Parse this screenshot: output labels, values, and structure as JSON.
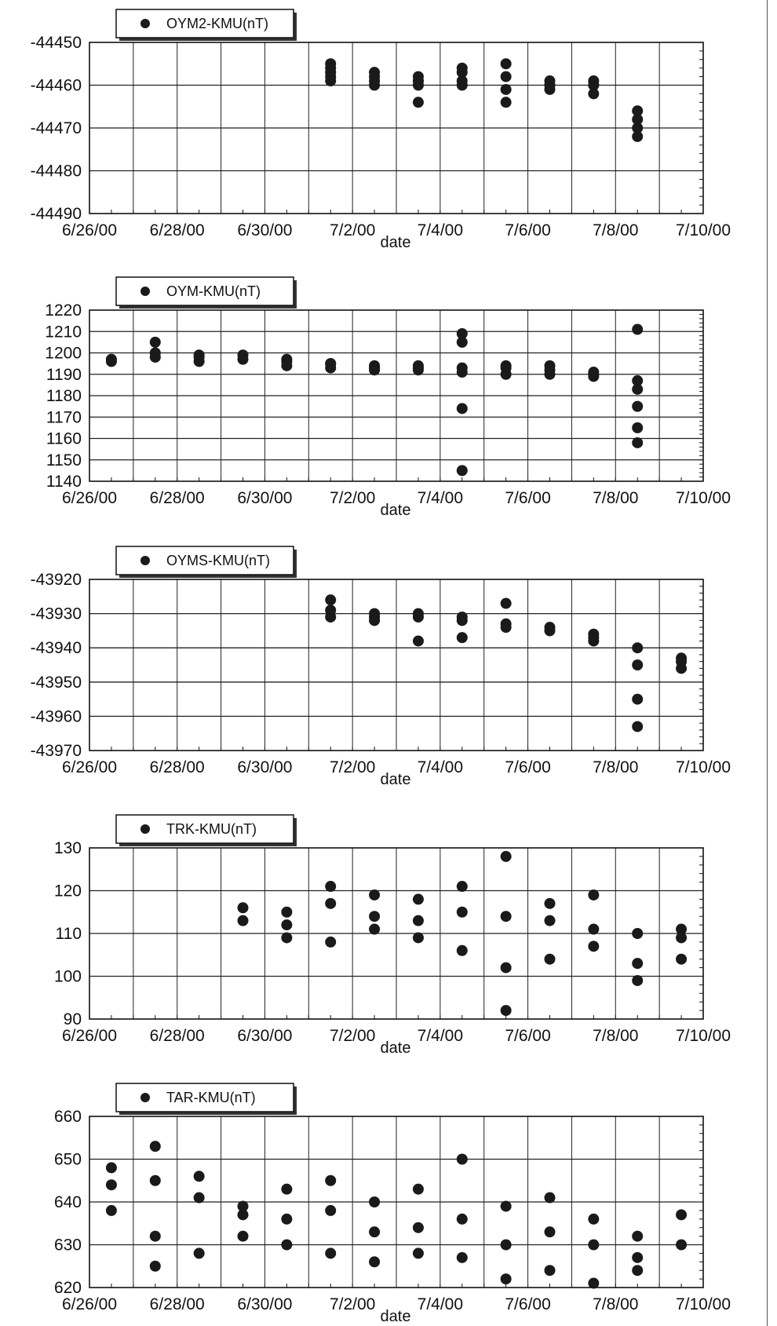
{
  "x_tick_labels": [
    "6/26/00",
    "6/28/00",
    "6/30/00",
    "7/2/00",
    "7/4/00",
    "7/6/00",
    "7/8/00",
    "7/10/00"
  ],
  "chart_data": [
    {
      "type": "scatter",
      "legend": "OYM2-KMU(nT)",
      "xlabel": "date",
      "ylim": [
        -44490,
        -44450
      ],
      "yticks": [
        -44450,
        -44460,
        -44470,
        -44480,
        -44490
      ],
      "xlim": [
        "2000-06-26",
        "2000-07-10"
      ],
      "grid": true,
      "legend_position": "top-left",
      "x": [
        "2000-07-01",
        "2000-07-01",
        "2000-07-01",
        "2000-07-01",
        "2000-07-01",
        "2000-07-02",
        "2000-07-02",
        "2000-07-02",
        "2000-07-02",
        "2000-07-03",
        "2000-07-03",
        "2000-07-03",
        "2000-07-03",
        "2000-07-03",
        "2000-07-04",
        "2000-07-04",
        "2000-07-04",
        "2000-07-04",
        "2000-07-05",
        "2000-07-05",
        "2000-07-05",
        "2000-07-05",
        "2000-07-06",
        "2000-07-06",
        "2000-07-06",
        "2000-07-06",
        "2000-07-07",
        "2000-07-07",
        "2000-07-07",
        "2000-07-07",
        "2000-07-08",
        "2000-07-08",
        "2000-07-08",
        "2000-07-08"
      ],
      "y": [
        -44455,
        -44457,
        -44456,
        -44459,
        -44458,
        -44457,
        -44459,
        -44458,
        -44460,
        -44459,
        -44460,
        -44458,
        -44459,
        -44464,
        -44457,
        -44459,
        -44456,
        -44460,
        -44461,
        -44458,
        -44455,
        -44464,
        -44460,
        -44459,
        -44461,
        -44460,
        -44459,
        -44462,
        -44460,
        -44460,
        -44468,
        -44466,
        -44470,
        -44472
      ]
    },
    {
      "type": "scatter",
      "legend": "OYM-KMU(nT)",
      "xlabel": "date",
      "ylim": [
        1140,
        1220
      ],
      "yticks": [
        1220,
        1210,
        1200,
        1190,
        1180,
        1170,
        1160,
        1150,
        1140
      ],
      "xlim": [
        "2000-06-26",
        "2000-07-10"
      ],
      "grid": true,
      "legend_position": "top-left",
      "x": [
        "2000-06-26",
        "2000-06-26",
        "2000-06-27",
        "2000-06-27",
        "2000-06-27",
        "2000-06-28",
        "2000-06-28",
        "2000-06-28",
        "2000-06-29",
        "2000-06-29",
        "2000-06-30",
        "2000-06-30",
        "2000-06-30",
        "2000-07-01",
        "2000-07-01",
        "2000-07-01",
        "2000-07-02",
        "2000-07-02",
        "2000-07-02",
        "2000-07-03",
        "2000-07-03",
        "2000-07-03",
        "2000-07-04",
        "2000-07-04",
        "2000-07-04",
        "2000-07-04",
        "2000-07-04",
        "2000-07-04",
        "2000-07-05",
        "2000-07-05",
        "2000-07-05",
        "2000-07-06",
        "2000-07-06",
        "2000-07-06",
        "2000-07-07",
        "2000-07-07",
        "2000-07-07",
        "2000-07-08",
        "2000-07-08",
        "2000-07-08",
        "2000-07-08",
        "2000-07-08",
        "2000-07-08"
      ],
      "y": [
        1197,
        1196,
        1205,
        1200,
        1198,
        1199,
        1196,
        1198,
        1197,
        1199,
        1197,
        1196,
        1194,
        1195,
        1195,
        1193,
        1194,
        1192,
        1193,
        1194,
        1193,
        1192,
        1193,
        1191,
        1209,
        1174,
        1145,
        1205,
        1193,
        1190,
        1194,
        1192,
        1190,
        1194,
        1191,
        1190,
        1189,
        1187,
        1183,
        1175,
        1165,
        1158,
        1211
      ]
    },
    {
      "type": "scatter",
      "legend": "OYMS-KMU(nT)",
      "xlabel": "date",
      "ylim": [
        -43970,
        -43920
      ],
      "yticks": [
        -43920,
        -43930,
        -43940,
        -43950,
        -43960,
        -43970
      ],
      "xlim": [
        "2000-06-26",
        "2000-07-10"
      ],
      "grid": true,
      "legend_position": "top-left",
      "x": [
        "2000-07-01",
        "2000-07-01",
        "2000-07-01",
        "2000-07-02",
        "2000-07-02",
        "2000-07-02",
        "2000-07-03",
        "2000-07-03",
        "2000-07-03",
        "2000-07-04",
        "2000-07-04",
        "2000-07-04",
        "2000-07-05",
        "2000-07-05",
        "2000-07-05",
        "2000-07-06",
        "2000-07-06",
        "2000-07-07",
        "2000-07-07",
        "2000-07-07",
        "2000-07-08",
        "2000-07-08",
        "2000-07-08",
        "2000-07-08",
        "2000-07-09",
        "2000-07-09",
        "2000-07-09"
      ],
      "y": [
        -43926,
        -43931,
        -43929,
        -43931,
        -43930,
        -43932,
        -43930,
        -43931,
        -43938,
        -43931,
        -43932,
        -43937,
        -43933,
        -43927,
        -43934,
        -43934,
        -43935,
        -43936,
        -43937,
        -43938,
        -43940,
        -43945,
        -43955,
        -43963,
        -43946,
        -43944,
        -43943
      ]
    },
    {
      "type": "scatter",
      "legend": "TRK-KMU(nT)",
      "xlabel": "date",
      "ylim": [
        90,
        130
      ],
      "yticks": [
        130,
        120,
        110,
        100,
        90
      ],
      "xlim": [
        "2000-06-26",
        "2000-07-10"
      ],
      "grid": true,
      "legend_position": "top-left",
      "x": [
        "2000-06-29",
        "2000-06-29",
        "2000-06-30",
        "2000-06-30",
        "2000-06-30",
        "2000-07-01",
        "2000-07-01",
        "2000-07-01",
        "2000-07-02",
        "2000-07-02",
        "2000-07-02",
        "2000-07-03",
        "2000-07-03",
        "2000-07-03",
        "2000-07-04",
        "2000-07-04",
        "2000-07-04",
        "2000-07-05",
        "2000-07-05",
        "2000-07-05",
        "2000-07-05",
        "2000-07-06",
        "2000-07-06",
        "2000-07-06",
        "2000-07-07",
        "2000-07-07",
        "2000-07-07",
        "2000-07-08",
        "2000-07-08",
        "2000-07-08",
        "2000-07-09",
        "2000-07-09",
        "2000-07-09"
      ],
      "y": [
        116,
        113,
        112,
        109,
        115,
        117,
        121,
        108,
        114,
        119,
        111,
        113,
        118,
        109,
        115,
        106,
        121,
        128,
        114,
        102,
        92,
        113,
        117,
        104,
        111,
        119,
        107,
        110,
        103,
        99,
        111,
        104,
        109
      ]
    },
    {
      "type": "scatter",
      "legend": "TAR-KMU(nT)",
      "xlabel": "date",
      "ylim": [
        620,
        660
      ],
      "yticks": [
        660,
        650,
        640,
        630,
        620
      ],
      "xlim": [
        "2000-06-26",
        "2000-07-10"
      ],
      "grid": true,
      "legend_position": "top-left",
      "x": [
        "2000-06-26",
        "2000-06-26",
        "2000-06-26",
        "2000-06-27",
        "2000-06-27",
        "2000-06-27",
        "2000-06-27",
        "2000-06-28",
        "2000-06-28",
        "2000-06-28",
        "2000-06-29",
        "2000-06-29",
        "2000-06-29",
        "2000-06-30",
        "2000-06-30",
        "2000-06-30",
        "2000-07-01",
        "2000-07-01",
        "2000-07-01",
        "2000-07-02",
        "2000-07-02",
        "2000-07-02",
        "2000-07-03",
        "2000-07-03",
        "2000-07-03",
        "2000-07-04",
        "2000-07-04",
        "2000-07-04",
        "2000-07-05",
        "2000-07-05",
        "2000-07-05",
        "2000-07-06",
        "2000-07-06",
        "2000-07-06",
        "2000-07-07",
        "2000-07-07",
        "2000-07-07",
        "2000-07-08",
        "2000-07-08",
        "2000-07-08",
        "2000-07-09",
        "2000-07-09"
      ],
      "y": [
        644,
        648,
        638,
        653,
        632,
        645,
        625,
        641,
        628,
        646,
        637,
        632,
        639,
        636,
        630,
        643,
        638,
        628,
        645,
        633,
        626,
        640,
        634,
        628,
        643,
        636,
        627,
        650,
        630,
        622,
        639,
        633,
        624,
        641,
        621,
        630,
        636,
        624,
        632,
        627,
        637,
        630
      ]
    }
  ]
}
